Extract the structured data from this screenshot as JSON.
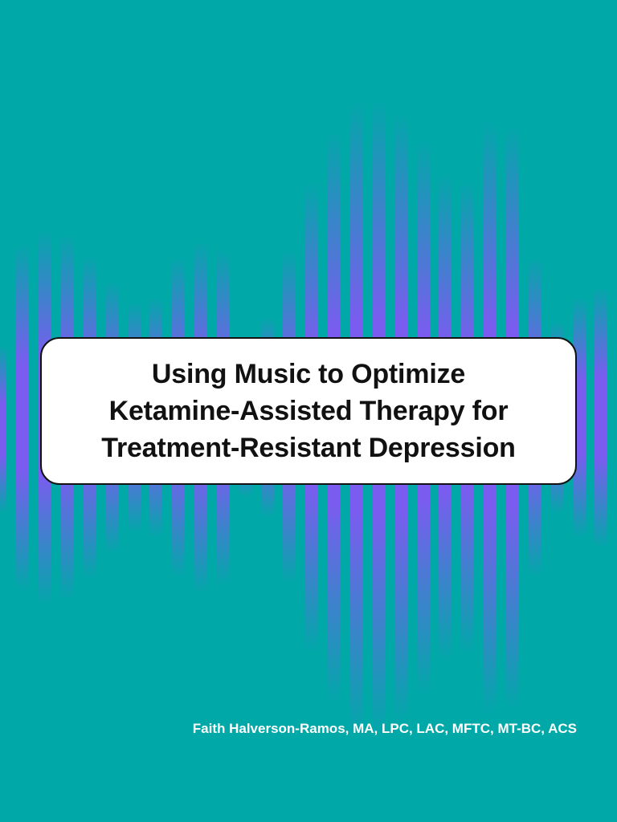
{
  "cover": {
    "title_lines": [
      "Using Music to Optimize",
      "Ketamine-Assisted Therapy for",
      "Treatment-Resistant Depression"
    ],
    "author": "Faith Halverson-Ramos, MA, LPC, LAC, MFTC, MT-BC, ACS"
  },
  "colors": {
    "background": "#00a8a8",
    "wave_bars": "#7b5cf0",
    "title_box": "#ffffff",
    "title_text": "#111111",
    "author_text": "#ffffff"
  },
  "decoration": {
    "icon": "sound-wave-bars"
  }
}
